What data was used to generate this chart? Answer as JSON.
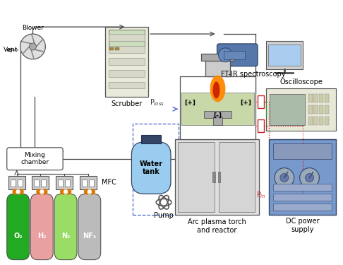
{
  "bg_color": "#ffffff",
  "fig_width": 4.86,
  "fig_height": 3.75,
  "labels": {
    "blower": "Blower",
    "vent": "Vent",
    "mixing_chamber": "Mixing\nchamber",
    "mfc": "MFC",
    "scrubber": "Scrubber",
    "ft_ir": "FT-IR spectroscopy",
    "oscilloscope": "Oscilloscope",
    "dc_power": "DC power\nsupply",
    "arc_plasma": "Arc plasma torch\nand reactor",
    "water_tank": "Water\ntank",
    "pump": "Pump",
    "p_loss": "P$_{loss}$",
    "p_in": "P$_{in}$",
    "o2": "O₂",
    "h2": "H₂",
    "n2": "N₂",
    "nf3": "NF₃",
    "plus1": "[+]",
    "plus2": "[+]",
    "minus": "[-]"
  },
  "colors": {
    "gas_o2": "#22aa22",
    "gas_h2": "#e8a0a0",
    "gas_n2": "#99dd66",
    "gas_nf3": "#bbbbbb",
    "water_tank_body": "#99ccee",
    "water_tank_cap": "#334466",
    "scrubber_screen": "#ccddbb",
    "plasma_orange": "#ff8800",
    "plasma_red": "#cc2200",
    "dc_power_body": "#7799cc",
    "oscilloscope_screen": "#aabbaa",
    "ftir_body": "#5577aa",
    "monitor_screen": "#aaccee",
    "arrow_blue": "#4466cc",
    "arrow_red": "#cc2222",
    "arrow_green": "#229944",
    "connector_orange": "#dd7700"
  }
}
